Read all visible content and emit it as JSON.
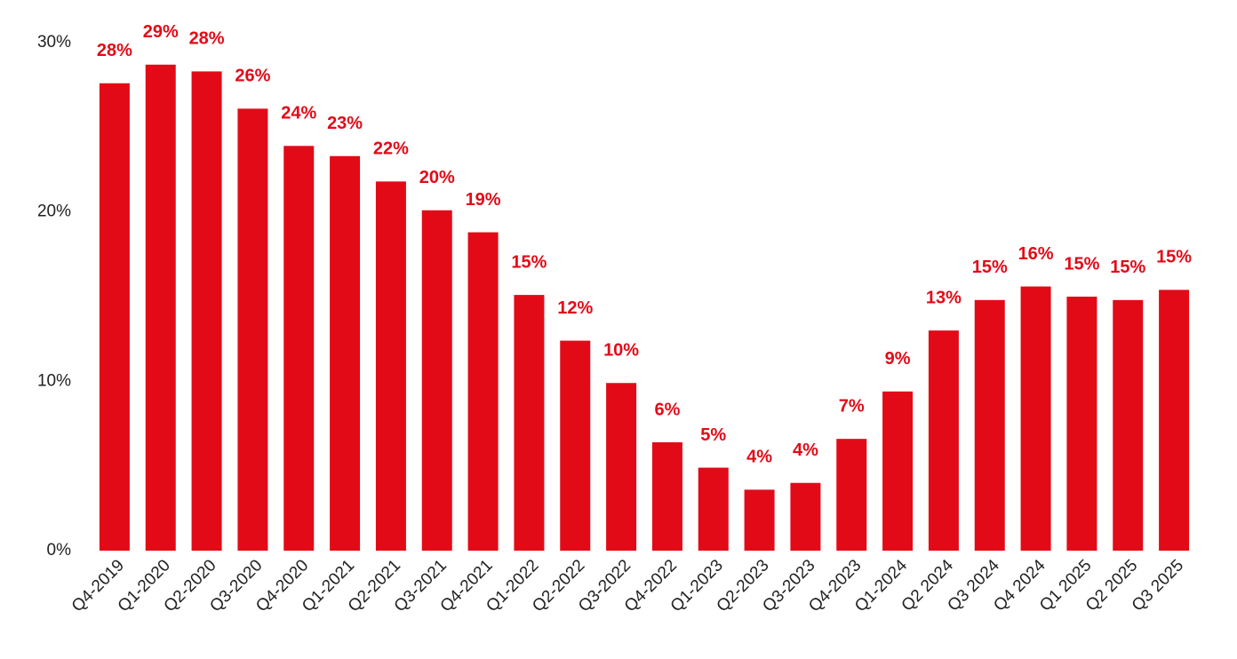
{
  "chart_data": {
    "type": "bar",
    "categories": [
      "Q4-2019",
      "Q1-2020",
      "Q2-2020",
      "Q3-2020",
      "Q4-2020",
      "Q1-2021",
      "Q2-2021",
      "Q3-2021",
      "Q4-2021",
      "Q1-2022",
      "Q2-2022",
      "Q3-2022",
      "Q4-2022",
      "Q1-2023",
      "Q2-2023",
      "Q3-2023",
      "Q4-2023",
      "Q1-2024",
      "Q2 2024",
      "Q3 2024",
      "Q4 2024",
      "Q1 2025",
      "Q2 2025",
      "Q3 2025"
    ],
    "values": [
      27.6,
      28.7,
      28.3,
      26.1,
      23.9,
      23.3,
      21.8,
      20.1,
      18.8,
      15.1,
      12.4,
      9.9,
      6.4,
      4.9,
      3.6,
      4.0,
      6.6,
      9.4,
      13.0,
      14.8,
      15.6,
      15.0,
      14.8,
      15.4
    ],
    "value_labels": [
      "28%",
      "29%",
      "28%",
      "26%",
      "24%",
      "23%",
      "22%",
      "20%",
      "19%",
      "15%",
      "12%",
      "10%",
      "6%",
      "5%",
      "4%",
      "4%",
      "7%",
      "9%",
      "13%",
      "15%",
      "16%",
      "15%",
      "15%",
      "15%"
    ],
    "color": "#e30a17",
    "ylim": [
      0,
      30
    ],
    "yticks": [
      {
        "value": 0,
        "label": "0%"
      },
      {
        "value": 10,
        "label": "10%"
      },
      {
        "value": 20,
        "label": "20%"
      },
      {
        "value": 30,
        "label": "30%"
      }
    ],
    "grid": false
  }
}
